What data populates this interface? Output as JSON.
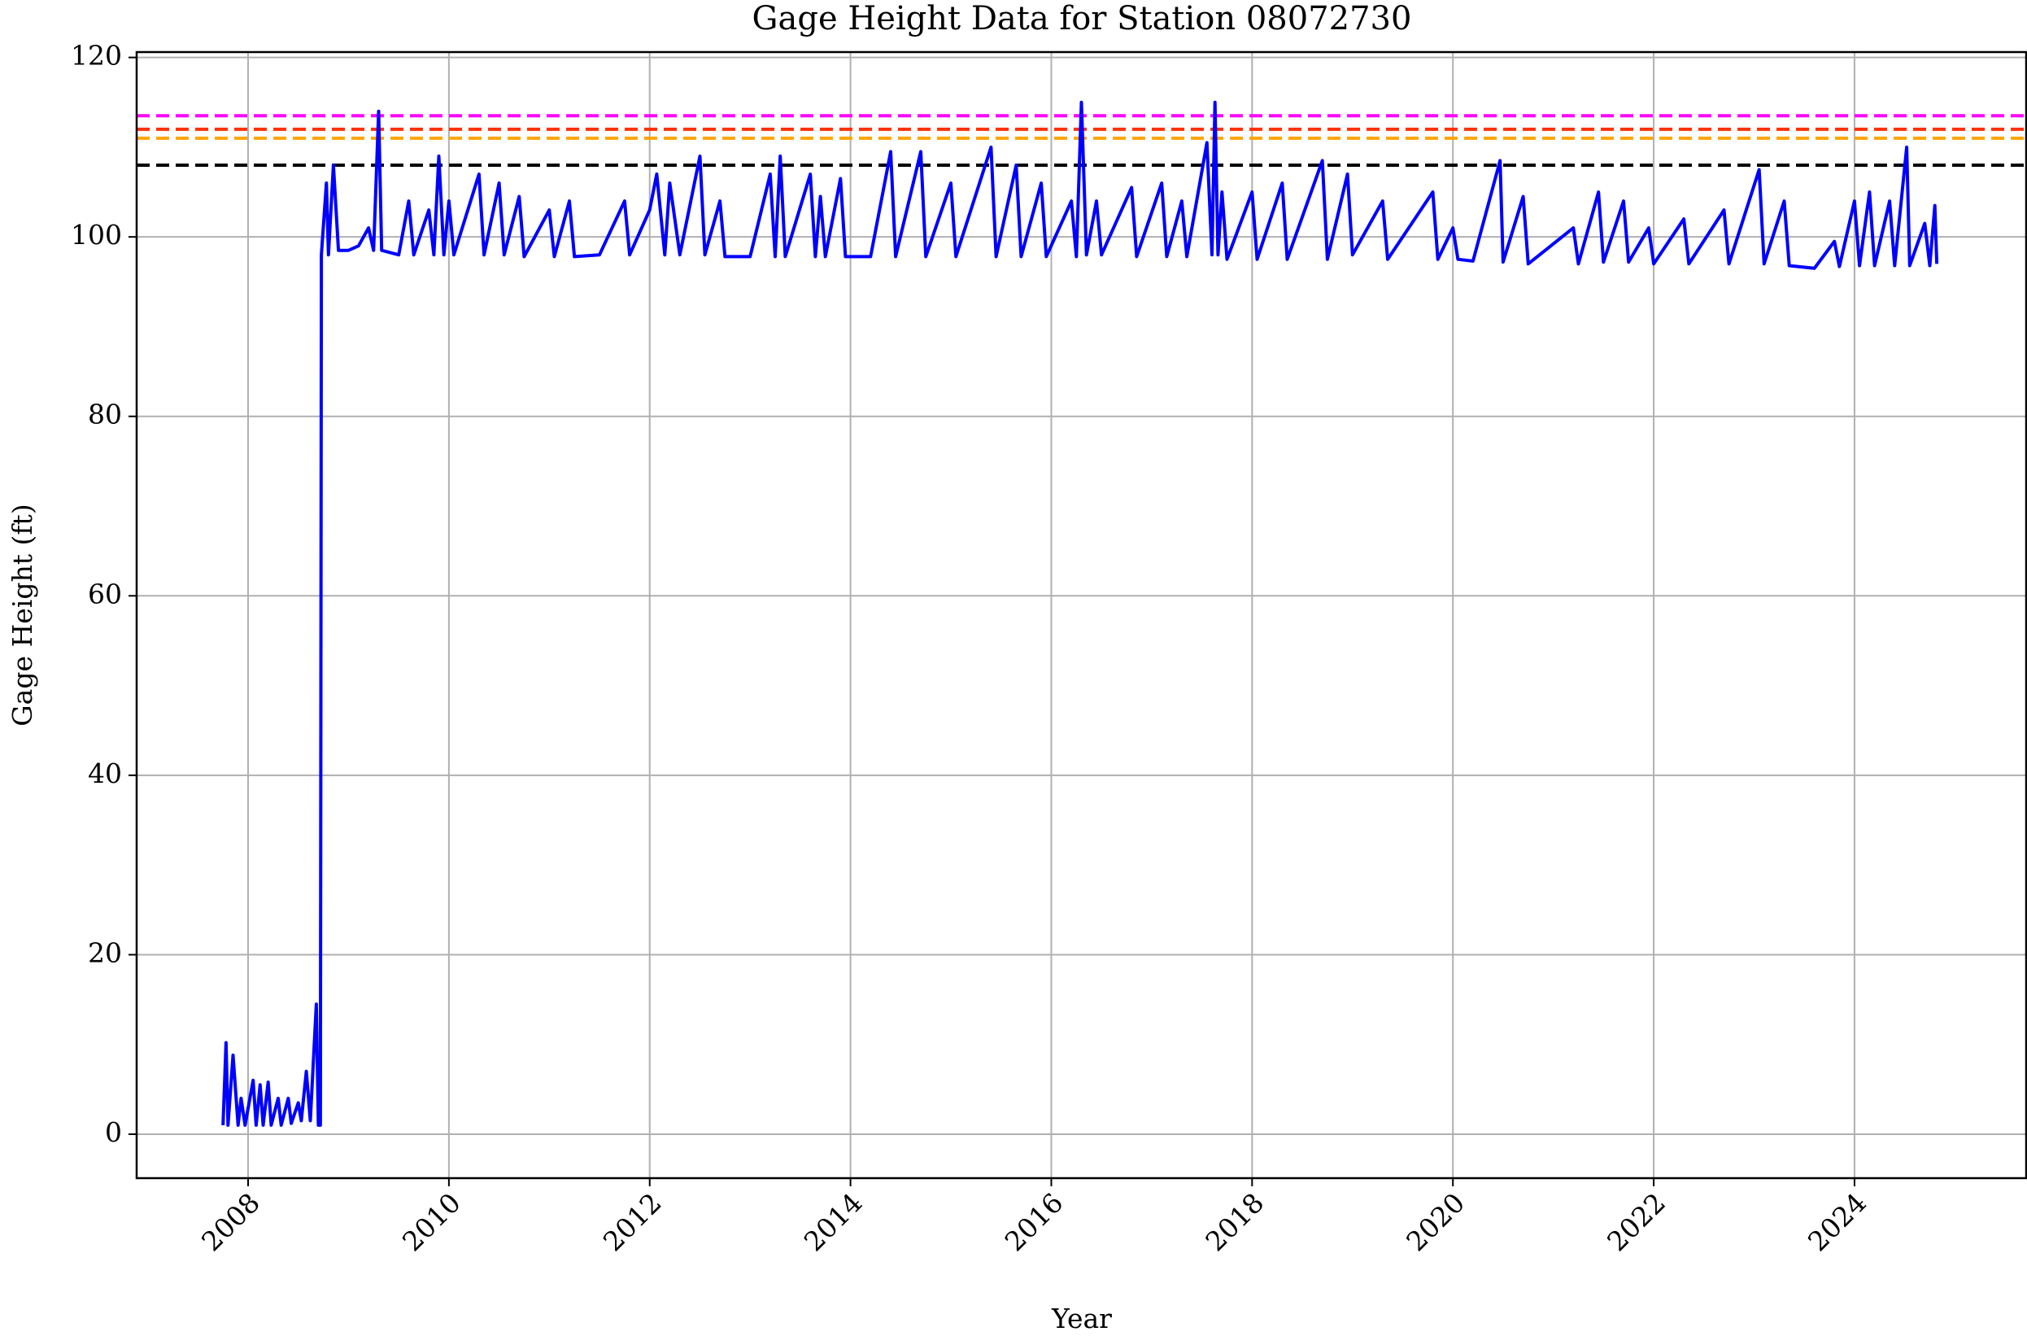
{
  "chart_data": {
    "type": "line",
    "title": "Gage Height Data for Station 08072730",
    "x_label": "Year",
    "y_label": "Gage Height (ft)",
    "color": "#0000ff",
    "grid": true,
    "xlim": [
      2006.89,
      2025.71
    ],
    "ylim": [
      -4.9,
      120.6
    ],
    "xticks": [
      2008,
      2010,
      2012,
      2014,
      2016,
      2018,
      2020,
      2022,
      2024
    ],
    "yticks": [
      0,
      20,
      40,
      60,
      80,
      100,
      120
    ],
    "hlines": [
      {
        "value": 113.5,
        "color": "#ff00ff"
      },
      {
        "value": 112,
        "color": "#ff3000"
      },
      {
        "value": 111,
        "color": "#ffa500"
      },
      {
        "value": 108,
        "color": "#000000"
      }
    ],
    "x": [
      2007.75,
      2007.78,
      2007.8,
      2007.85,
      2007.9,
      2007.93,
      2007.97,
      2008.05,
      2008.08,
      2008.12,
      2008.15,
      2008.2,
      2008.23,
      2008.3,
      2008.33,
      2008.4,
      2008.43,
      2008.5,
      2008.53,
      2008.58,
      2008.62,
      2008.68,
      2008.7,
      2008.72,
      2008.73,
      2008.78,
      2008.8,
      2008.85,
      2008.9,
      2009.0,
      2009.1,
      2009.2,
      2009.25,
      2009.3,
      2009.33,
      2009.5,
      2009.6,
      2009.65,
      2009.8,
      2009.85,
      2009.9,
      2009.95,
      2010.0,
      2010.05,
      2010.3,
      2010.35,
      2010.5,
      2010.55,
      2010.7,
      2010.75,
      2011.0,
      2011.05,
      2011.2,
      2011.25,
      2011.5,
      2011.75,
      2011.8,
      2012.0,
      2012.07,
      2012.15,
      2012.2,
      2012.3,
      2012.5,
      2012.55,
      2012.7,
      2012.75,
      2013.0,
      2013.2,
      2013.25,
      2013.3,
      2013.35,
      2013.6,
      2013.65,
      2013.7,
      2013.75,
      2013.9,
      2013.95,
      2014.2,
      2014.4,
      2014.45,
      2014.7,
      2014.75,
      2015.0,
      2015.05,
      2015.4,
      2015.45,
      2015.65,
      2015.7,
      2015.9,
      2015.95,
      2016.2,
      2016.25,
      2016.3,
      2016.35,
      2016.45,
      2016.5,
      2016.8,
      2016.85,
      2017.1,
      2017.15,
      2017.3,
      2017.35,
      2017.55,
      2017.6,
      2017.63,
      2017.66,
      2017.7,
      2017.75,
      2018.0,
      2018.05,
      2018.3,
      2018.35,
      2018.7,
      2018.75,
      2018.95,
      2019.0,
      2019.3,
      2019.35,
      2019.8,
      2019.85,
      2020.0,
      2020.05,
      2020.2,
      2020.47,
      2020.5,
      2020.7,
      2020.75,
      2021.2,
      2021.25,
      2021.45,
      2021.5,
      2021.7,
      2021.75,
      2021.95,
      2022.0,
      2022.3,
      2022.35,
      2022.7,
      2022.75,
      2023.05,
      2023.1,
      2023.3,
      2023.35,
      2023.6,
      2023.8,
      2023.85,
      2024.0,
      2024.05,
      2024.15,
      2024.2,
      2024.35,
      2024.4,
      2024.52,
      2024.55,
      2024.7,
      2024.75,
      2024.8,
      2024.82
    ],
    "values": [
      1,
      10.2,
      1,
      8.8,
      1,
      4,
      1,
      6,
      1,
      5.5,
      1,
      5.8,
      1,
      4,
      1,
      4,
      1.2,
      3.5,
      1.5,
      7,
      1.5,
      14.5,
      1,
      1,
      98,
      106,
      98,
      108,
      98.5,
      98.5,
      99,
      101,
      98.5,
      114,
      98.5,
      98,
      104,
      98,
      103,
      98,
      109,
      98,
      104,
      98,
      107,
      98,
      106,
      98,
      104.5,
      97.8,
      103,
      97.8,
      104,
      97.8,
      98,
      104,
      98,
      103,
      107,
      98,
      106,
      98,
      109,
      98,
      104,
      97.8,
      97.8,
      107,
      97.8,
      109,
      97.8,
      107,
      97.8,
      104.5,
      97.8,
      106.5,
      97.8,
      97.8,
      109.5,
      97.8,
      109.5,
      97.8,
      106,
      97.8,
      110,
      97.8,
      108,
      97.8,
      106,
      97.8,
      104,
      97.8,
      115,
      98,
      104,
      98,
      105.5,
      97.8,
      106,
      97.8,
      104,
      97.8,
      110.5,
      98,
      115,
      98,
      105,
      97.5,
      105,
      97.5,
      106,
      97.5,
      108.5,
      97.5,
      107,
      98,
      104,
      97.5,
      105,
      97.5,
      101,
      97.5,
      97.3,
      108.5,
      97.2,
      104.5,
      97,
      101,
      97,
      105,
      97.2,
      104,
      97.2,
      101,
      97,
      102,
      97,
      103,
      97,
      107.5,
      97,
      104,
      96.8,
      96.5,
      99.5,
      96.7,
      104,
      96.8,
      105,
      96.8,
      104,
      96.8,
      110,
      96.8,
      101.5,
      96.8,
      103.5,
      97
    ]
  }
}
